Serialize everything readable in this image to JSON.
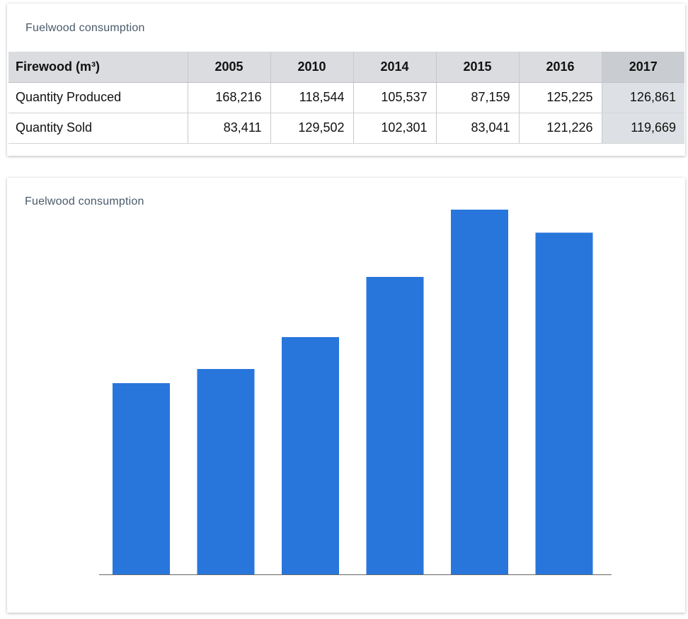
{
  "table_card": {
    "title": "Fuelwood consumption",
    "header_label": "Firewood (m³)",
    "years": [
      "2005",
      "2010",
      "2014",
      "2015",
      "2016",
      "2017"
    ],
    "rows": [
      {
        "label": "Quantity Produced",
        "values": [
          "168,216",
          "118,544",
          "105,537",
          "87,159",
          "125,225",
          "126,861"
        ]
      },
      {
        "label": "Quantity Sold",
        "values": [
          "83,411",
          "129,502",
          "102,301",
          "83,041",
          "121,226",
          "119,669"
        ]
      }
    ],
    "highlight_year": "2017",
    "colors": {
      "header_bg": "#dadcdf",
      "highlight_bg": "#dde1e5"
    }
  },
  "chart_card": {
    "title": "Fuelwood consumption"
  },
  "chart_data": {
    "type": "bar",
    "title": "Fuelwood consumption",
    "xlabel": "",
    "ylabel": "",
    "values": [
      54,
      58,
      67,
      84,
      103,
      96.5
    ],
    "ylim": [
      0,
      110
    ],
    "grid": false,
    "legend": "none",
    "bar_color": "#2876dc",
    "axis_color": "#666666"
  }
}
